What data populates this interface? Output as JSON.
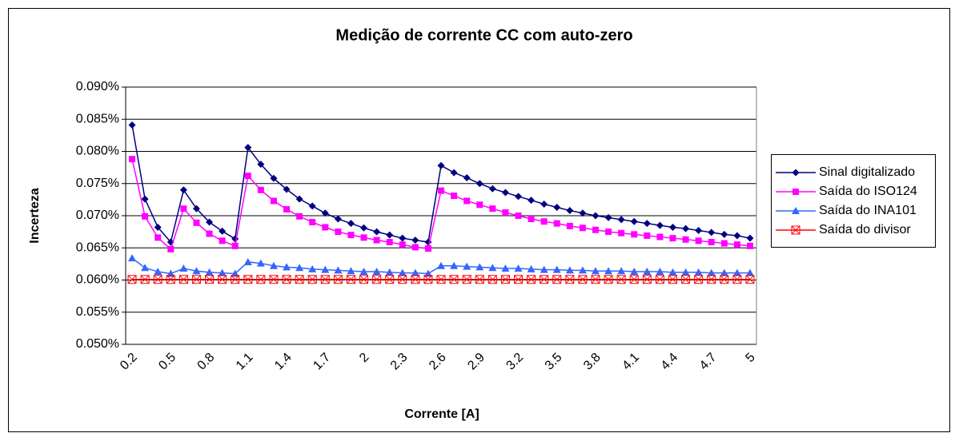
{
  "chart_data": {
    "type": "line",
    "title": "Medição de corrente CC com auto-zero",
    "x_label": "Corrente [A]",
    "y_label": "Incerteza",
    "categories": [
      0.2,
      null,
      null,
      0.5,
      null,
      null,
      0.8,
      null,
      null,
      1.1,
      null,
      null,
      1.4,
      null,
      null,
      1.7,
      null,
      null,
      2,
      null,
      null,
      2.3,
      null,
      null,
      2.6,
      null,
      null,
      2.9,
      null,
      null,
      3.2,
      null,
      null,
      3.5,
      null,
      null,
      3.8,
      null,
      null,
      4.1,
      null,
      null,
      4.4,
      null,
      null,
      4.7,
      null,
      null,
      5
    ],
    "ylim": [
      0.05,
      0.09
    ],
    "yticks": [
      {
        "value": 0.05,
        "label": "0.050%"
      },
      {
        "value": 0.055,
        "label": "0.055%"
      },
      {
        "value": 0.06,
        "label": "0.060%"
      },
      {
        "value": 0.065,
        "label": "0.065%"
      },
      {
        "value": 0.07,
        "label": "0.070%"
      },
      {
        "value": 0.075,
        "label": "0.075%"
      },
      {
        "value": 0.08,
        "label": "0.080%"
      },
      {
        "value": 0.085,
        "label": "0.085%"
      },
      {
        "value": 0.09,
        "label": "0.090%"
      }
    ],
    "grid": true,
    "legend": "right",
    "series": [
      {
        "name": "Sinal digitalizado",
        "color": "#000080",
        "marker": "diamond",
        "values": [
          0.0841,
          0.0726,
          0.0682,
          0.0659,
          0.074,
          0.0711,
          0.069,
          0.0676,
          0.0664,
          0.0806,
          0.078,
          0.0758,
          0.0741,
          0.0726,
          0.0715,
          0.0704,
          0.0695,
          0.0688,
          0.0681,
          0.0675,
          0.067,
          0.0665,
          0.0662,
          0.0659,
          0.0778,
          0.0767,
          0.0759,
          0.075,
          0.0742,
          0.0736,
          0.073,
          0.0724,
          0.0718,
          0.0713,
          0.0708,
          0.0704,
          0.07,
          0.0697,
          0.0694,
          0.0691,
          0.0688,
          0.0685,
          0.0682,
          0.068,
          0.0677,
          0.0674,
          0.0671,
          0.0669,
          0.0665
        ]
      },
      {
        "name": "Saída do ISO124",
        "color": "#ff00ff",
        "marker": "square",
        "values": [
          0.0788,
          0.0699,
          0.0666,
          0.0648,
          0.0711,
          0.0689,
          0.0672,
          0.0661,
          0.0653,
          0.0762,
          0.074,
          0.0723,
          0.071,
          0.0699,
          0.069,
          0.0682,
          0.0675,
          0.067,
          0.0666,
          0.0662,
          0.0659,
          0.0655,
          0.0651,
          0.0649,
          0.0739,
          0.0731,
          0.0723,
          0.0717,
          0.0711,
          0.0705,
          0.07,
          0.0695,
          0.0691,
          0.0688,
          0.0684,
          0.0681,
          0.0678,
          0.0675,
          0.0673,
          0.0671,
          0.0669,
          0.0667,
          0.0665,
          0.0663,
          0.0661,
          0.0659,
          0.0657,
          0.0655,
          0.0653
        ]
      },
      {
        "name": "Saída do INA101",
        "color": "#3366ff",
        "marker": "triangle",
        "values": [
          0.0634,
          0.0619,
          0.0613,
          0.061,
          0.0618,
          0.0614,
          0.0612,
          0.0611,
          0.061,
          0.0628,
          0.0626,
          0.0622,
          0.062,
          0.0619,
          0.0617,
          0.0616,
          0.0615,
          0.0614,
          0.0613,
          0.0613,
          0.0612,
          0.0611,
          0.0611,
          0.061,
          0.0622,
          0.0622,
          0.0621,
          0.062,
          0.0619,
          0.0618,
          0.0618,
          0.0617,
          0.0616,
          0.0616,
          0.0615,
          0.0615,
          0.0614,
          0.0614,
          0.0614,
          0.0613,
          0.0613,
          0.0613,
          0.0612,
          0.0612,
          0.0612,
          0.0611,
          0.0611,
          0.0611,
          0.0611
        ]
      },
      {
        "name": "Saída do divisor",
        "color": "#ff0000",
        "marker": "boxcross",
        "values": [
          0.0601,
          0.0601,
          0.0601,
          0.0601,
          0.0601,
          0.0601,
          0.0601,
          0.0601,
          0.0601,
          0.0601,
          0.0601,
          0.0601,
          0.0601,
          0.0601,
          0.0601,
          0.0601,
          0.0601,
          0.0601,
          0.0601,
          0.0601,
          0.0601,
          0.0601,
          0.0601,
          0.0601,
          0.0601,
          0.0601,
          0.0601,
          0.0601,
          0.0601,
          0.0601,
          0.0601,
          0.0601,
          0.0601,
          0.0601,
          0.0601,
          0.0601,
          0.0601,
          0.0601,
          0.0601,
          0.0601,
          0.0601,
          0.0601,
          0.0601,
          0.0601,
          0.0601,
          0.0601,
          0.0601,
          0.0601,
          0.0601
        ]
      }
    ]
  }
}
